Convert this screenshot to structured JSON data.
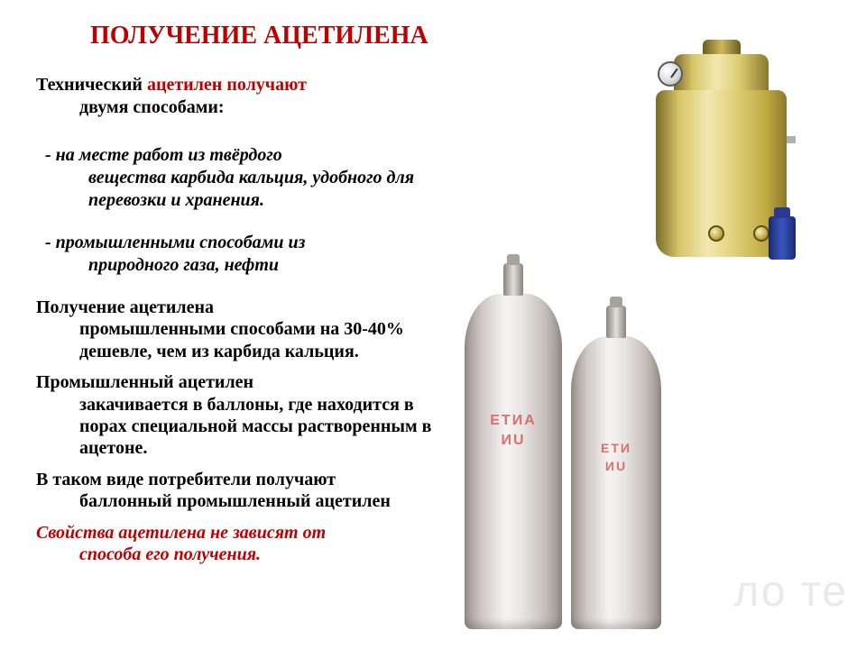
{
  "title": "ПОЛУЧЕНИЕ АЦЕТИЛЕНА",
  "intro_plain": "Технический ",
  "intro_accent": "ацетилен получают",
  "intro_tail": "двумя способами:",
  "bullet1_lead": " - на месте работ из твёрдого",
  "bullet1_rest": "вещества карбида кальция, удобного для перевозки и хранения.",
  "bullet2_lead": " - промышленными способами из",
  "bullet2_rest": "природного газа, нефти",
  "para1_lead": "Получение ацетилена",
  "para1_rest": "промышленными способами на 30-40% дешевле, чем из карбида кальция.",
  "para2_lead": "Промышленный ацетилен",
  "para2_rest": "закачивается в баллоны, где находится в порах специальной массы растворенным в ацетоне.",
  "para3_lead": " В таком виде потребители получают",
  "para3_rest": "баллонный промышленный ацетилен",
  "final_lead": "Свойства ацетилена не зависят от",
  "final_rest": "способа его получения.",
  "cyl_big_l1": "ЕТИА",
  "cyl_big_l2": "ИU",
  "cyl_small_l1": "ЕТИ",
  "cyl_small_l2": "ИU",
  "watermark": "ло те",
  "colors": {
    "accent": "#c00000",
    "text": "#000000",
    "cylinder_base": "#e8e4e1",
    "generator_base": "#d8c669",
    "valve": "#2a3a90"
  }
}
